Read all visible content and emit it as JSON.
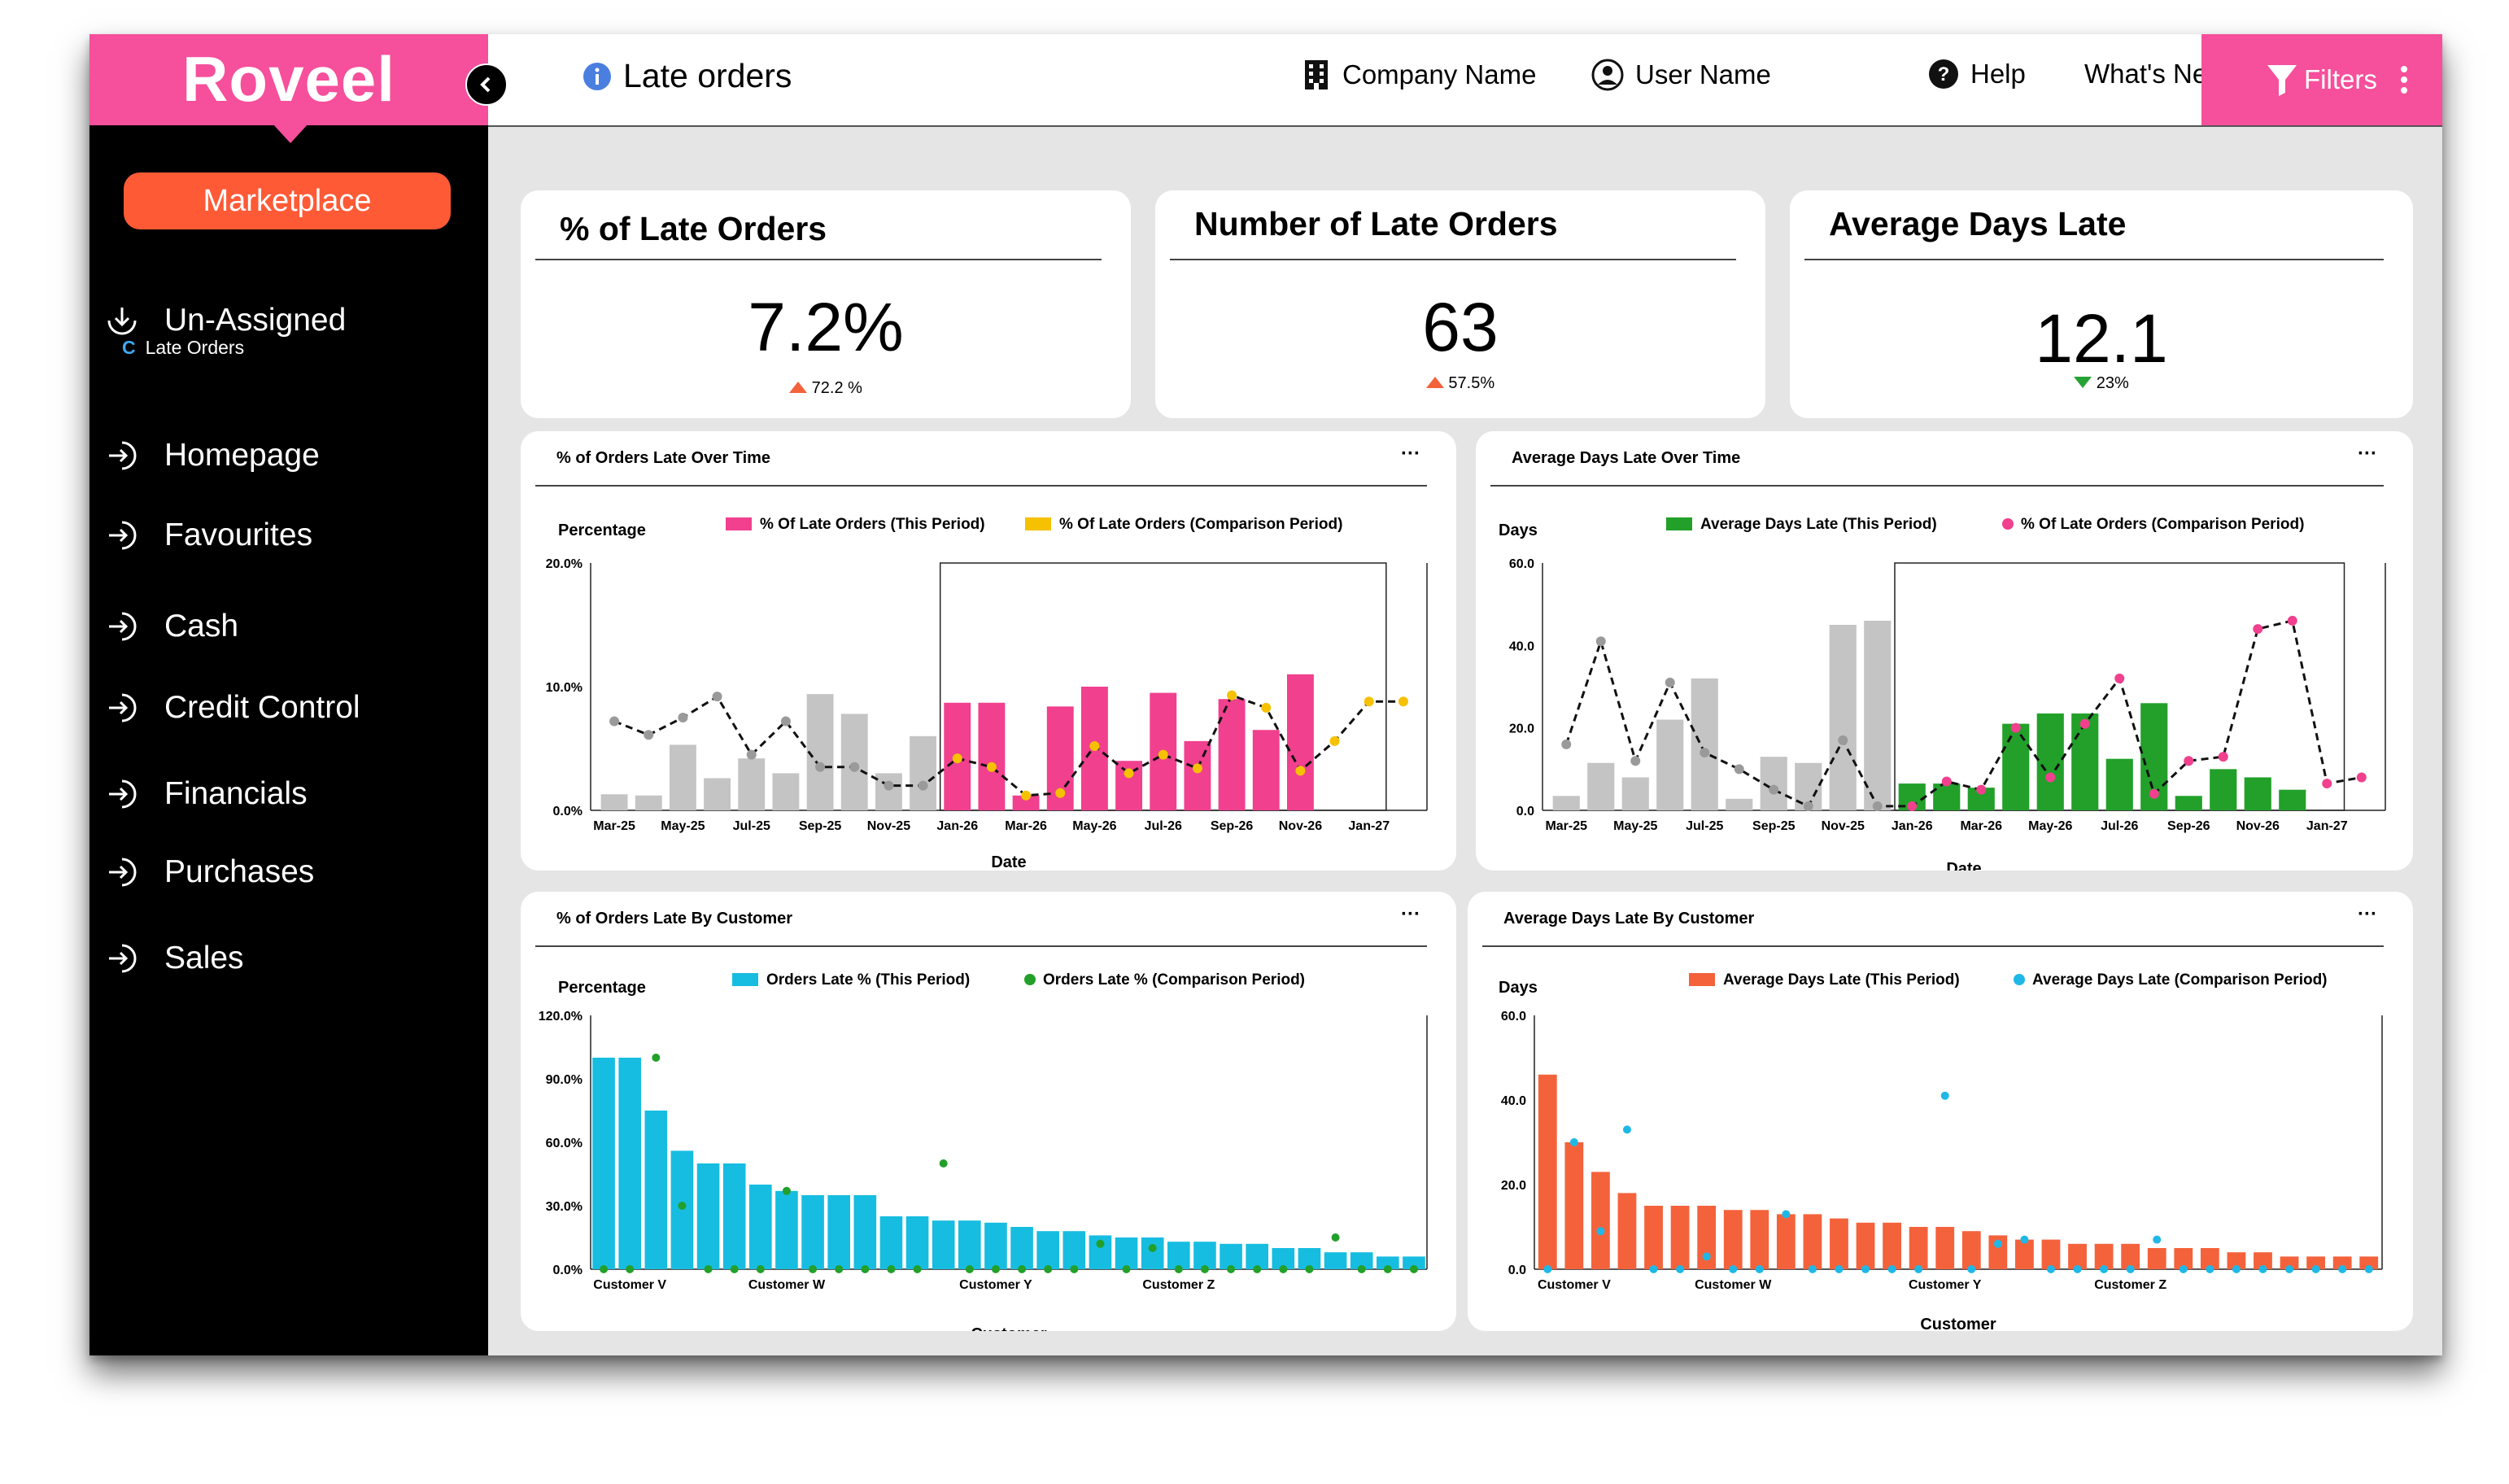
{
  "app": {
    "logo": "Roveel"
  },
  "sidebar": {
    "marketplace_label": "Marketplace",
    "items": [
      {
        "label": "Un-Assigned",
        "icon": "download-circle-icon"
      },
      {
        "label": "Homepage",
        "icon": "arrow-in-circle-icon"
      },
      {
        "label": "Favourites",
        "icon": "arrow-in-circle-icon"
      },
      {
        "label": "Cash",
        "icon": "arrow-in-circle-icon"
      },
      {
        "label": "Credit Control",
        "icon": "arrow-in-circle-icon"
      },
      {
        "label": "Financials",
        "icon": "arrow-in-circle-icon"
      },
      {
        "label": "Purchases",
        "icon": "arrow-in-circle-icon"
      },
      {
        "label": "Sales",
        "icon": "arrow-in-circle-icon"
      }
    ],
    "sub_item": {
      "prefix": "C",
      "label": "Late Orders"
    }
  },
  "header": {
    "title": "Late orders",
    "company": "Company Name",
    "user": "User Name",
    "help": "Help",
    "whats_new": "What's New?",
    "filters": "Filters"
  },
  "colors": {
    "brand_pink": "#f64f9b",
    "orange": "#ff5a36",
    "bar_pink": "#f0408e",
    "bar_green": "#22a02a",
    "bar_cyan": "#17bde0",
    "bar_coral": "#f4623b",
    "bar_grey": "#c4c4c4",
    "yellow": "#f6c100",
    "delta_up": "#f4623b",
    "delta_down": "#27a234"
  },
  "kpis": [
    {
      "title": "% of Late Orders",
      "value": "7.2%",
      "delta": "72.2 %",
      "direction": "up"
    },
    {
      "title": "Number of Late Orders",
      "value": "63",
      "delta": "57.5%",
      "direction": "up"
    },
    {
      "title": "Average Days Late",
      "value": "12.1",
      "delta": "23%",
      "direction": "down"
    }
  ],
  "chart_data": [
    {
      "type": "bar",
      "title": "% of Orders Late Over Time",
      "ylabel": "Percentage",
      "xlabel": "Date",
      "yticks": [
        "0.0%",
        "10.0%",
        "20.0%"
      ],
      "ylim": [
        0,
        20
      ],
      "xticks": [
        "Mar-25",
        "May-25",
        "Jul-25",
        "Sep-25",
        "Nov-25",
        "Jan-26",
        "Mar-26",
        "May-26",
        "Jul-26",
        "Sep-26",
        "Nov-26",
        "Jan-27"
      ],
      "series": [
        {
          "name": "% Of Late Orders (This Period)",
          "color": "#f0408e",
          "values": [
            1.3,
            1.2,
            5.3,
            2.6,
            4.2,
            3.0,
            9.4,
            7.8,
            3.0,
            6.0,
            8.7,
            8.7,
            1.2,
            8.4,
            10.0,
            4.0,
            9.5,
            5.6,
            9.0,
            6.5,
            11.0
          ]
        },
        {
          "name": "% Of Late Orders (Comparison Period)",
          "color": "#f6c100",
          "style": "dashed-line-with-markers",
          "values": [
            7.2,
            6.1,
            7.5,
            9.2,
            4.5,
            7.2,
            3.5,
            3.5,
            2.0,
            2.0,
            4.2,
            3.5,
            1.2,
            1.4,
            5.2,
            3.0,
            4.5,
            3.4,
            9.3,
            8.3,
            3.2,
            5.6,
            8.8,
            8.8
          ]
        }
      ],
      "x_start_labels": 0,
      "highlight_window": {
        "from_index": 10,
        "to_index": 22
      }
    },
    {
      "type": "bar",
      "title": "Average Days Late Over Time",
      "ylabel": "Days",
      "xlabel": "Date",
      "yticks": [
        "0.0",
        "20.0",
        "40.0",
        "60.0"
      ],
      "ylim": [
        0,
        60
      ],
      "xticks": [
        "Mar-25",
        "May-25",
        "Jul-25",
        "Sep-25",
        "Nov-25",
        "Jan-26",
        "Mar-26",
        "May-26",
        "Jul-26",
        "Sep-26",
        "Nov-26",
        "Jan-27"
      ],
      "series": [
        {
          "name": "Average Days Late (This Period)",
          "color": "#22a02a",
          "values": [
            3.5,
            11.5,
            8.0,
            22.0,
            32.0,
            2.8,
            13.0,
            11.5,
            45.0,
            46.0,
            6.5,
            6.5,
            5.5,
            21.0,
            23.5,
            23.5,
            12.5,
            26.0,
            3.5,
            10.0,
            8.0,
            5.0
          ]
        },
        {
          "name": "% Of Late Orders (Comparison Period)",
          "color": "#f0408e",
          "style": "dashed-line-with-markers",
          "values": [
            16.0,
            41.0,
            12.0,
            31.0,
            14.0,
            10.0,
            5.0,
            1.0,
            17.0,
            1.0,
            1.0,
            7.0,
            5.0,
            20.0,
            8.0,
            21.0,
            32.0,
            4.0,
            12.0,
            13.0,
            44.0,
            46.0,
            6.5,
            8.0
          ]
        }
      ],
      "highlight_window": {
        "from_index": 10,
        "to_index": 22
      }
    },
    {
      "type": "bar",
      "title": "% of Orders Late By Customer",
      "ylabel": "Percentage",
      "xlabel": "Customer",
      "yticks": [
        "0.0%",
        "30.0%",
        "60.0%",
        "90.0%",
        "120.0%"
      ],
      "ylim": [
        0,
        120
      ],
      "xticks": [
        "Customer V",
        "Customer W",
        "Customer Y",
        "Customer Z"
      ],
      "series": [
        {
          "name": "Orders Late % (This Period)",
          "color": "#17bde0",
          "values": [
            100,
            100,
            75,
            56,
            50,
            50,
            40,
            37,
            35,
            35,
            35,
            25,
            25,
            23,
            23,
            22,
            20,
            18,
            18,
            16,
            15,
            15,
            13,
            13,
            12,
            12,
            10,
            10,
            8,
            8,
            6,
            6
          ]
        },
        {
          "name": "Orders Late % (Comparison Period)",
          "color": "#22a02a",
          "style": "markers",
          "values": [
            0,
            0,
            100,
            30,
            0,
            0,
            0,
            37,
            0,
            0,
            0,
            0,
            0,
            50,
            0,
            0,
            0,
            0,
            0,
            12,
            0,
            10,
            0,
            0,
            0,
            0,
            0,
            0,
            15,
            0,
            0,
            0
          ]
        }
      ]
    },
    {
      "type": "bar",
      "title": "Average Days Late By Customer",
      "ylabel": "Days",
      "xlabel": "Customer",
      "yticks": [
        "0.0",
        "20.0",
        "40.0",
        "60.0"
      ],
      "ylim": [
        0,
        60
      ],
      "xticks": [
        "Customer V",
        "Customer W",
        "Customer Y",
        "Customer Z"
      ],
      "series": [
        {
          "name": "Average Days Late (This Period)",
          "color": "#f4623b",
          "values": [
            46,
            30,
            23,
            18,
            15,
            15,
            15,
            14,
            14,
            13,
            13,
            12,
            11,
            11,
            10,
            10,
            9,
            8,
            7,
            7,
            6,
            6,
            6,
            5,
            5,
            5,
            4,
            4,
            3,
            3,
            3,
            3
          ]
        },
        {
          "name": "Average Days Late (Comparison Period)",
          "color": "#1fb8e6",
          "style": "markers",
          "values": [
            0,
            30,
            9,
            33,
            0,
            0,
            3,
            0,
            0,
            13,
            0,
            0,
            0,
            0,
            0,
            41,
            0,
            6,
            7,
            0,
            0,
            0,
            0,
            7,
            0,
            0,
            0,
            0,
            0,
            0,
            0,
            0
          ]
        }
      ]
    }
  ]
}
